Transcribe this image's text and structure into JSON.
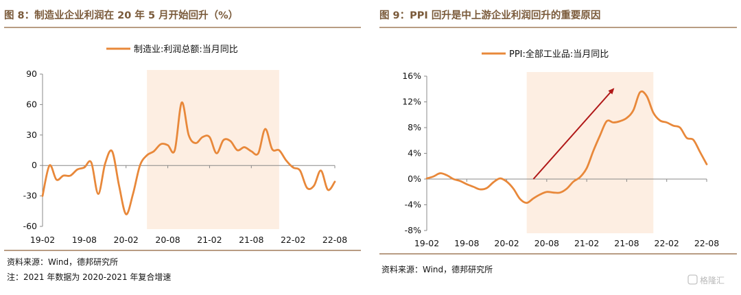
{
  "panels": [
    {
      "title": "图 8：制造业企业利润在 20 年 5 月开始回升（%）",
      "source": "资料来源：Wind，德邦研究所",
      "note": "注：2021 年数据为 2020-2021 年复合增速"
    },
    {
      "title": "图 9：PPI 回升是中上游企业利润回升的重要原因",
      "source": "资料来源：Wind，德邦研究所",
      "note": ""
    }
  ],
  "watermark": "格隆汇",
  "colors": {
    "line": "#e8883a",
    "highlight": "#fdeee2",
    "title": "#7a5a3a",
    "rule": "#a07c5a",
    "arrow": "#b01818"
  },
  "chart_data": [
    {
      "type": "line",
      "title": "",
      "legend": "top-center",
      "x_tick_labels": [
        "19-02",
        "19-08",
        "20-02",
        "20-08",
        "21-02",
        "21-08",
        "22-02",
        "22-08"
      ],
      "ylim": [
        -60,
        90
      ],
      "y_ticks": [
        -60,
        -30,
        0,
        30,
        60,
        90
      ],
      "y_tick_labels": [
        "-60",
        "-30",
        "0",
        "30",
        "60",
        "90"
      ],
      "highlight_x_range": [
        "2020-05",
        "2021-12"
      ],
      "series": [
        {
          "name": "制造业:利润总额:当月同比",
          "x": [
            "2019-02",
            "2019-03",
            "2019-04",
            "2019-05",
            "2019-06",
            "2019-07",
            "2019-08",
            "2019-09",
            "2019-10",
            "2019-11",
            "2019-12",
            "2020-01",
            "2020-02",
            "2020-03",
            "2020-04",
            "2020-05",
            "2020-06",
            "2020-07",
            "2020-08",
            "2020-09",
            "2020-10",
            "2020-11",
            "2020-12",
            "2021-01",
            "2021-02",
            "2021-03",
            "2021-04",
            "2021-05",
            "2021-06",
            "2021-07",
            "2021-08",
            "2021-09",
            "2021-10",
            "2021-11",
            "2021-12",
            "2022-01",
            "2022-02",
            "2022-03",
            "2022-04",
            "2022-05",
            "2022-06",
            "2022-07",
            "2022-08"
          ],
          "values": [
            -30,
            0,
            -14,
            -10,
            -10,
            -4,
            -2,
            3,
            -28,
            2,
            14,
            -20,
            -48,
            -28,
            0,
            10,
            14,
            21,
            20,
            15,
            62,
            30,
            22,
            28,
            28,
            12,
            25,
            24,
            15,
            18,
            14,
            12,
            36,
            16,
            15,
            5,
            -2,
            -5,
            -22,
            -20,
            -5,
            -24,
            -16
          ]
        }
      ]
    },
    {
      "type": "line",
      "title": "",
      "legend": "top-center",
      "x_tick_labels": [
        "19-02",
        "19-08",
        "20-02",
        "20-08",
        "21-02",
        "21-08",
        "22-02",
        "22-08"
      ],
      "ylim": [
        -8,
        16
      ],
      "y_ticks": [
        -8,
        -4,
        0,
        4,
        8,
        12,
        16
      ],
      "y_tick_labels": [
        "-8%",
        "-4%",
        "0%",
        "4%",
        "8%",
        "12%",
        "16%"
      ],
      "highlight_x_range": [
        "2020-05",
        "2021-12"
      ],
      "arrow": {
        "from": [
          "2020-06",
          0
        ],
        "to": [
          "2021-06",
          14
        ]
      },
      "series": [
        {
          "name": "PPI:全部工业品:当月同比",
          "x": [
            "2019-02",
            "2019-03",
            "2019-04",
            "2019-05",
            "2019-06",
            "2019-07",
            "2019-08",
            "2019-09",
            "2019-10",
            "2019-11",
            "2019-12",
            "2020-01",
            "2020-02",
            "2020-03",
            "2020-04",
            "2020-05",
            "2020-06",
            "2020-07",
            "2020-08",
            "2020-09",
            "2020-10",
            "2020-11",
            "2020-12",
            "2021-01",
            "2021-02",
            "2021-03",
            "2021-04",
            "2021-05",
            "2021-06",
            "2021-07",
            "2021-08",
            "2021-09",
            "2021-10",
            "2021-11",
            "2021-12",
            "2022-01",
            "2022-02",
            "2022-03",
            "2022-04",
            "2022-05",
            "2022-06",
            "2022-07",
            "2022-08"
          ],
          "values": [
            0.1,
            0.4,
            0.9,
            0.6,
            0.0,
            -0.3,
            -0.8,
            -1.2,
            -1.6,
            -1.4,
            -0.5,
            0.1,
            -0.4,
            -1.5,
            -3.1,
            -3.7,
            -3.0,
            -2.4,
            -2.0,
            -2.1,
            -2.1,
            -1.5,
            -0.4,
            0.3,
            1.7,
            4.4,
            6.8,
            9.0,
            8.8,
            9.0,
            9.5,
            10.7,
            13.5,
            12.9,
            10.3,
            9.1,
            8.8,
            8.3,
            8.0,
            6.4,
            6.1,
            4.2,
            2.3
          ]
        }
      ]
    }
  ]
}
